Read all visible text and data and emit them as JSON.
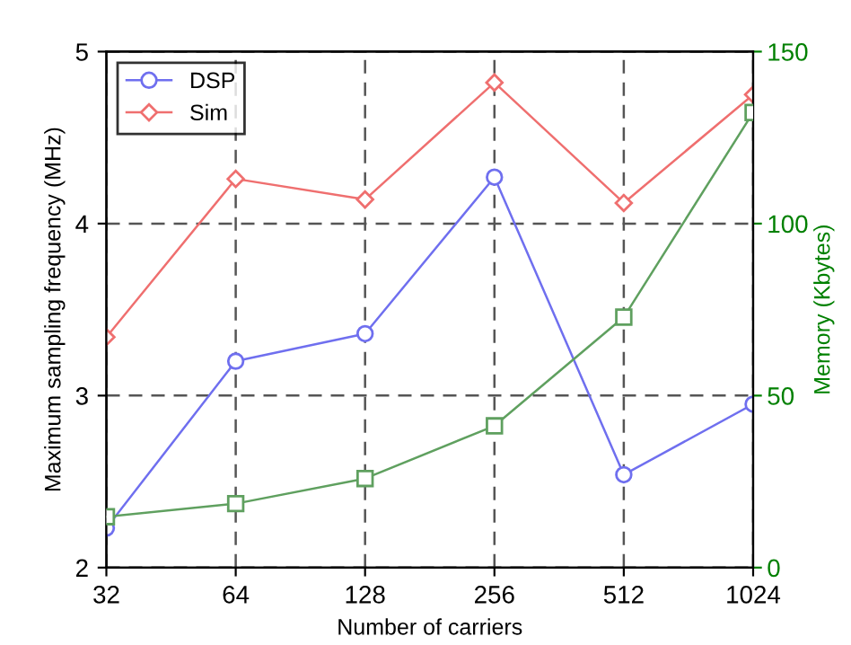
{
  "chart_data": {
    "type": "line",
    "xlabel": "Number of carriers",
    "ylabel": "Maximum sampling frequency (MHz)",
    "y2label": "Memory (Kbytes)",
    "x": [
      32,
      64,
      128,
      256,
      512,
      1024
    ],
    "log": "x",
    "xlim": [
      32,
      1024
    ],
    "xticks": [
      32,
      64,
      128,
      256,
      512,
      1024
    ],
    "ylim": [
      2,
      5
    ],
    "yticks": [
      2,
      3,
      4,
      5
    ],
    "y2lim": [
      0,
      150
    ],
    "y2ticks": [
      0,
      50,
      100,
      150
    ],
    "grid": true,
    "legend": "top left",
    "line_style": "solid",
    "series": [
      {
        "name": "DSP",
        "color": "#6f6fef",
        "marker": "circle",
        "values": [
          2.23,
          3.2,
          3.36,
          4.27,
          2.54,
          2.95
        ]
      },
      {
        "name": "Sim",
        "color": "#ef6f6f",
        "marker": "diamond",
        "values": [
          3.34,
          4.26,
          4.14,
          4.82,
          4.12,
          4.75
        ]
      },
      {
        "color": "#5fa05f",
        "marker": "square",
        "axis": "y2",
        "values": [
          14.8,
          18.6,
          25.9,
          41.2,
          72.8,
          132.3
        ]
      }
    ]
  }
}
